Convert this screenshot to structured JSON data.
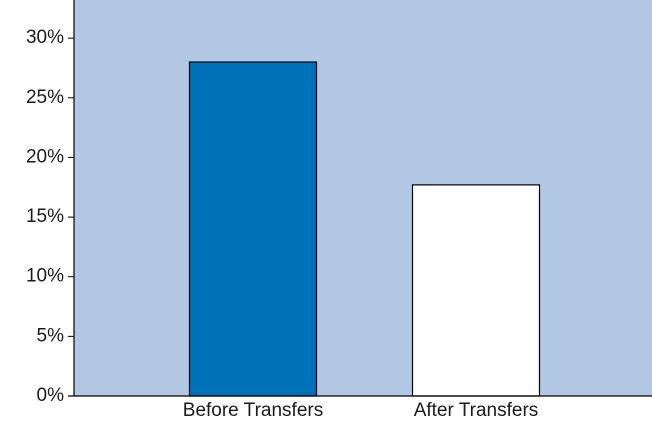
{
  "chart_data": {
    "type": "bar",
    "categories": [
      "Before Transfers",
      "After Transfers"
    ],
    "series": [
      {
        "values": [
          28,
          17.7
        ],
        "colors": [
          "#0072b9",
          "#ffffff"
        ]
      }
    ],
    "ylim": [
      0,
      33.2
    ],
    "yticks": [
      {
        "value": 0,
        "label": "0%"
      },
      {
        "value": 5,
        "label": "5%"
      },
      {
        "value": 10,
        "label": "10%"
      },
      {
        "value": 15,
        "label": "15%"
      },
      {
        "value": 20,
        "label": "20%"
      },
      {
        "value": 25,
        "label": "25%"
      },
      {
        "value": 30,
        "label": "30%"
      }
    ],
    "plot_background": "#b2c7e4",
    "grid": false
  }
}
